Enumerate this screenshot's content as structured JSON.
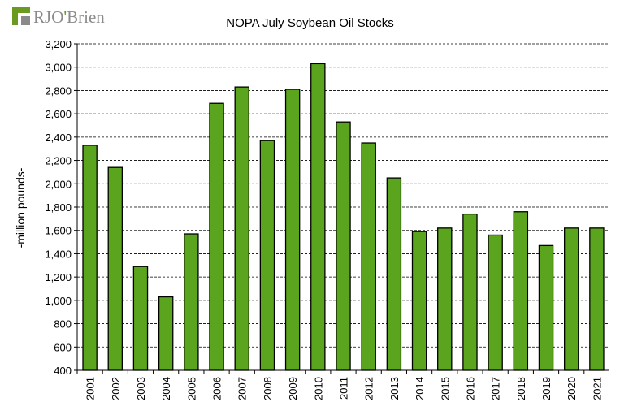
{
  "logo": {
    "text_r": "R",
    "text_jo": "JO",
    "text_apos": "'",
    "text_brien": "Brien"
  },
  "colors": {
    "bar_fill": "#5aa41e",
    "bar_stroke": "#000000",
    "grid": "#000000",
    "logo_green": "#6a9a1f",
    "logo_gray": "#8a8a8a"
  },
  "chart_data": {
    "type": "bar",
    "title": "NOPA July Soybean Oil Stocks",
    "ylabel": "-million pounds-",
    "xlabel": "",
    "ylim": [
      400,
      3200
    ],
    "yticks": [
      400,
      600,
      800,
      1000,
      1200,
      1400,
      1600,
      1800,
      2000,
      2200,
      2400,
      2600,
      2800,
      3000,
      3200
    ],
    "ytick_labels": [
      "400",
      "600",
      "800",
      "1,000",
      "1,200",
      "1,400",
      "1,600",
      "1,800",
      "2,000",
      "2,200",
      "2,400",
      "2,600",
      "2,800",
      "3,000",
      "3,200"
    ],
    "grid": "horizontal dashed",
    "categories": [
      "2001",
      "2002",
      "2003",
      "2004",
      "2005",
      "2006",
      "2007",
      "2008",
      "2009",
      "2010",
      "2011",
      "2012",
      "2013",
      "2014",
      "2015",
      "2016",
      "2017",
      "2018",
      "2019",
      "2020",
      "2021"
    ],
    "values": [
      2330,
      2140,
      1290,
      1030,
      1570,
      2690,
      2830,
      2370,
      2810,
      3030,
      2530,
      2350,
      2050,
      1590,
      1620,
      1740,
      1560,
      1760,
      1470,
      1620,
      1620
    ]
  }
}
